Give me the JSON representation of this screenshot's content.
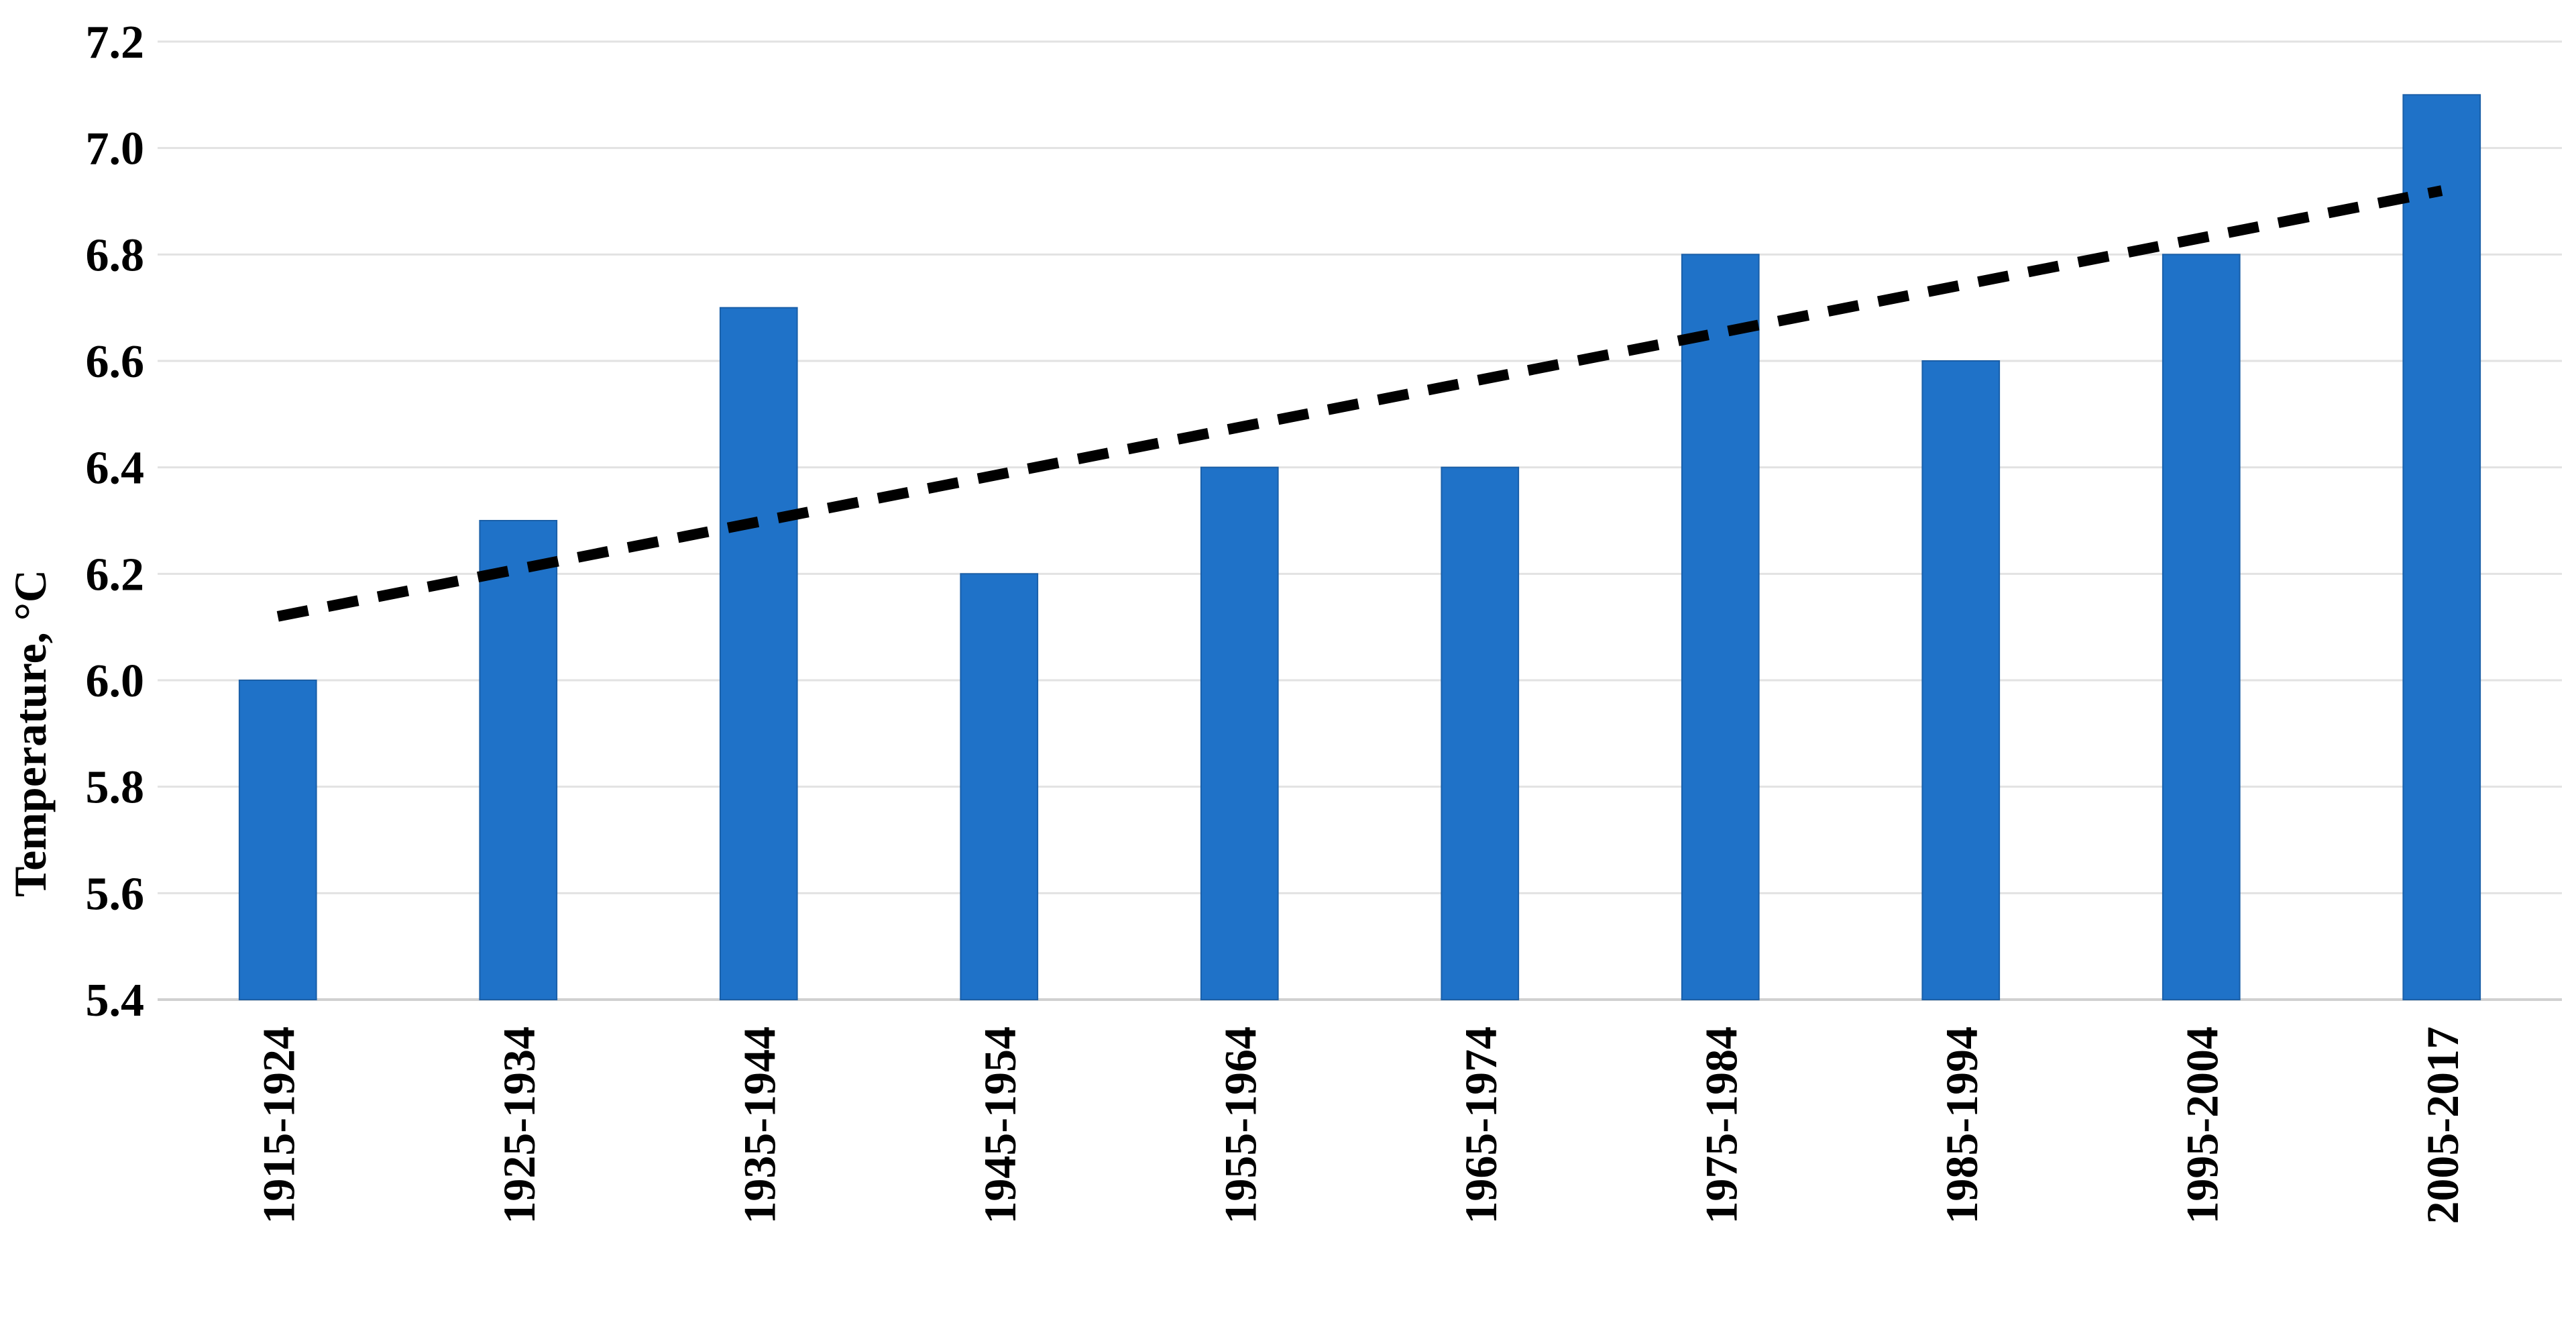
{
  "chart_data": {
    "type": "bar",
    "categories": [
      "1915-1924",
      "1925-1934",
      "1935-1944",
      "1945-1954",
      "1955-1964",
      "1965-1974",
      "1975-1984",
      "1985-1994",
      "1995-2004",
      "2005-2017"
    ],
    "values": [
      6.0,
      6.3,
      6.7,
      6.2,
      6.4,
      6.4,
      6.8,
      6.6,
      6.8,
      7.1
    ],
    "title": "",
    "xlabel": "",
    "ylabel": "Temperature, °C",
    "ylim": [
      5.4,
      7.2
    ],
    "yticks": [
      "5.4",
      "5.6",
      "5.8",
      "6.0",
      "6.2",
      "6.4",
      "6.6",
      "6.8",
      "7.0",
      "7.2"
    ],
    "grid": true,
    "legend": "none",
    "bar_color": "#1f72c8",
    "trendline": {
      "type": "linear",
      "style": "dashed",
      "color": "#000000",
      "start": 6.12,
      "end": 6.92
    }
  }
}
